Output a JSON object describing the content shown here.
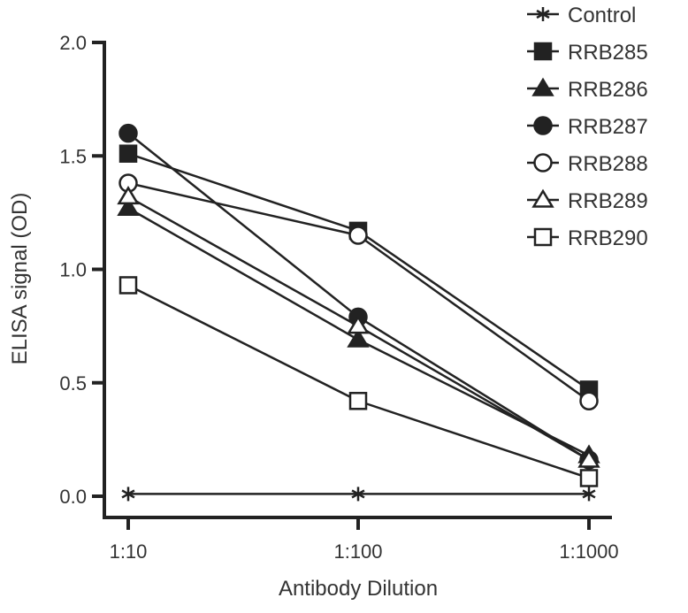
{
  "chart_data": {
    "type": "line",
    "title": "",
    "xlabel": "Antibody Dilution",
    "ylabel": "ELISA signal (OD)",
    "categories": [
      "1:10",
      "1:100",
      "1:1000"
    ],
    "ylim": [
      0,
      2.0
    ],
    "yticks": [
      "0.0",
      "0.5",
      "1.0",
      "1.5",
      "2.0"
    ],
    "grid": false,
    "legend_position": "top-right",
    "series": [
      {
        "name": "Control",
        "marker": "asterisk",
        "values": [
          0.01,
          0.01,
          0.01
        ]
      },
      {
        "name": "RRB285",
        "marker": "square-filled",
        "values": [
          1.51,
          1.17,
          0.47
        ]
      },
      {
        "name": "RRB286",
        "marker": "triangle-filled",
        "values": [
          1.27,
          0.69,
          0.18
        ]
      },
      {
        "name": "RRB287",
        "marker": "circle-filled",
        "values": [
          1.6,
          0.79,
          0.16
        ]
      },
      {
        "name": "RRB288",
        "marker": "circle-open",
        "values": [
          1.38,
          1.15,
          0.42
        ]
      },
      {
        "name": "RRB289",
        "marker": "triangle-open",
        "values": [
          1.32,
          0.75,
          0.16
        ]
      },
      {
        "name": "RRB290",
        "marker": "square-open",
        "values": [
          0.93,
          0.42,
          0.08
        ]
      }
    ],
    "colors": {
      "line": "#222222",
      "text": "#333333"
    }
  }
}
